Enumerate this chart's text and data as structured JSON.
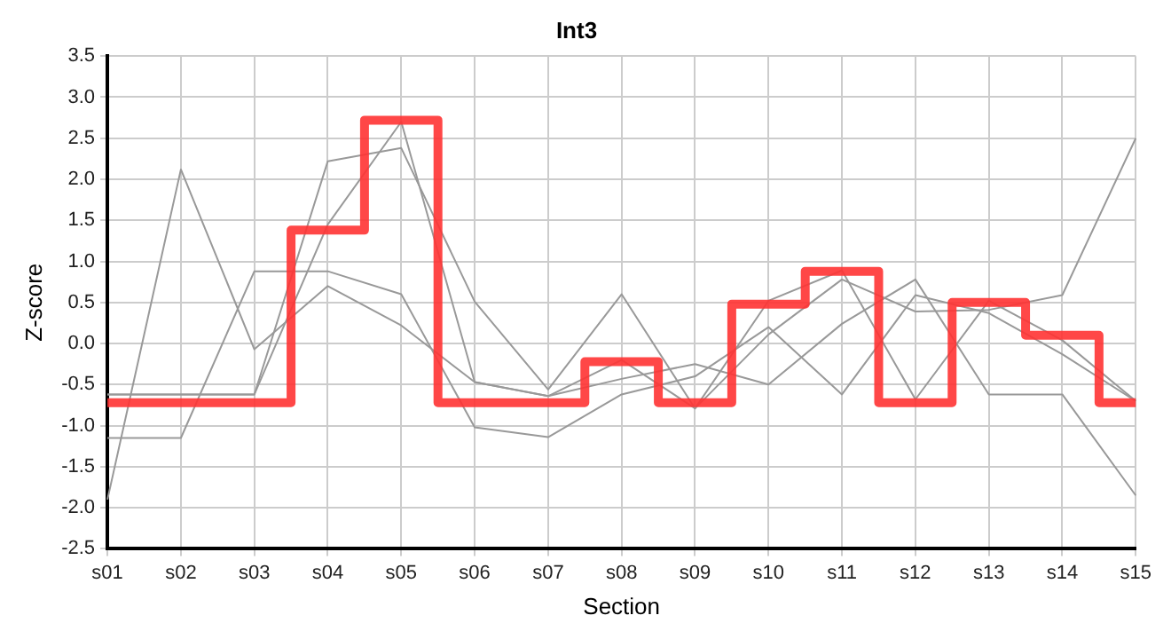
{
  "chart_data": {
    "type": "line",
    "title": "Int3",
    "xlabel": "Section",
    "ylabel": "Z-score",
    "categories": [
      "s01",
      "s02",
      "s03",
      "s04",
      "s05",
      "s06",
      "s07",
      "s08",
      "s09",
      "s10",
      "s11",
      "s12",
      "s13",
      "s14",
      "s15"
    ],
    "series": [
      {
        "color": "#999999",
        "values": [
          -1.9,
          2.12,
          -0.07,
          0.7,
          0.22,
          -0.47,
          -0.64,
          -0.2,
          -0.79,
          0.11,
          0.78,
          0.39,
          0.41,
          0.59,
          2.5
        ]
      },
      {
        "color": "#999999",
        "values": [
          -1.15,
          -1.15,
          0.88,
          0.88,
          0.6,
          -1.02,
          -1.14,
          -0.62,
          -0.4,
          0.2,
          -0.62,
          0.59,
          0.37,
          -0.13,
          -0.7
        ]
      },
      {
        "color": "#999999",
        "values": [
          -0.62,
          -0.62,
          -0.62,
          2.22,
          2.38,
          0.51,
          -0.56,
          0.6,
          -0.79,
          0.52,
          0.89,
          -0.68,
          0.52,
          0.04,
          -0.7
        ]
      },
      {
        "color": "#999999",
        "values": [
          -0.62,
          -0.62,
          -0.62,
          1.45,
          2.7,
          -0.47,
          -0.64,
          -0.43,
          -0.25,
          -0.5,
          0.24,
          0.78,
          -0.62,
          -0.62,
          -1.85
        ]
      },
      {
        "type": "step",
        "color": "#ff3333",
        "values": [
          -0.72,
          -0.72,
          -0.72,
          1.38,
          2.72,
          -0.72,
          -0.72,
          -0.22,
          -0.72,
          0.48,
          0.88,
          -0.72,
          0.5,
          0.1,
          -0.72
        ]
      }
    ],
    "ylim": [
      -2.5,
      3.5
    ],
    "yticks": [
      {
        "value": -2.5,
        "label": "-2.5"
      },
      {
        "value": -2,
        "label": "-2.0"
      },
      {
        "value": -1.5,
        "label": "-1.5"
      },
      {
        "value": -1,
        "label": "-1.0"
      },
      {
        "value": -0.5,
        "label": "-0.5"
      },
      {
        "value": 0,
        "label": "0.0"
      },
      {
        "value": 0.5,
        "label": "0.5"
      },
      {
        "value": 1,
        "label": "1.0"
      },
      {
        "value": 1.5,
        "label": "1.5"
      },
      {
        "value": 2,
        "label": "2.0"
      },
      {
        "value": 2.5,
        "label": "2.5"
      },
      {
        "value": 3,
        "label": "3.0"
      },
      {
        "value": 3.5,
        "label": "3.5"
      }
    ],
    "grid": true,
    "legend": false,
    "marker": "none"
  }
}
